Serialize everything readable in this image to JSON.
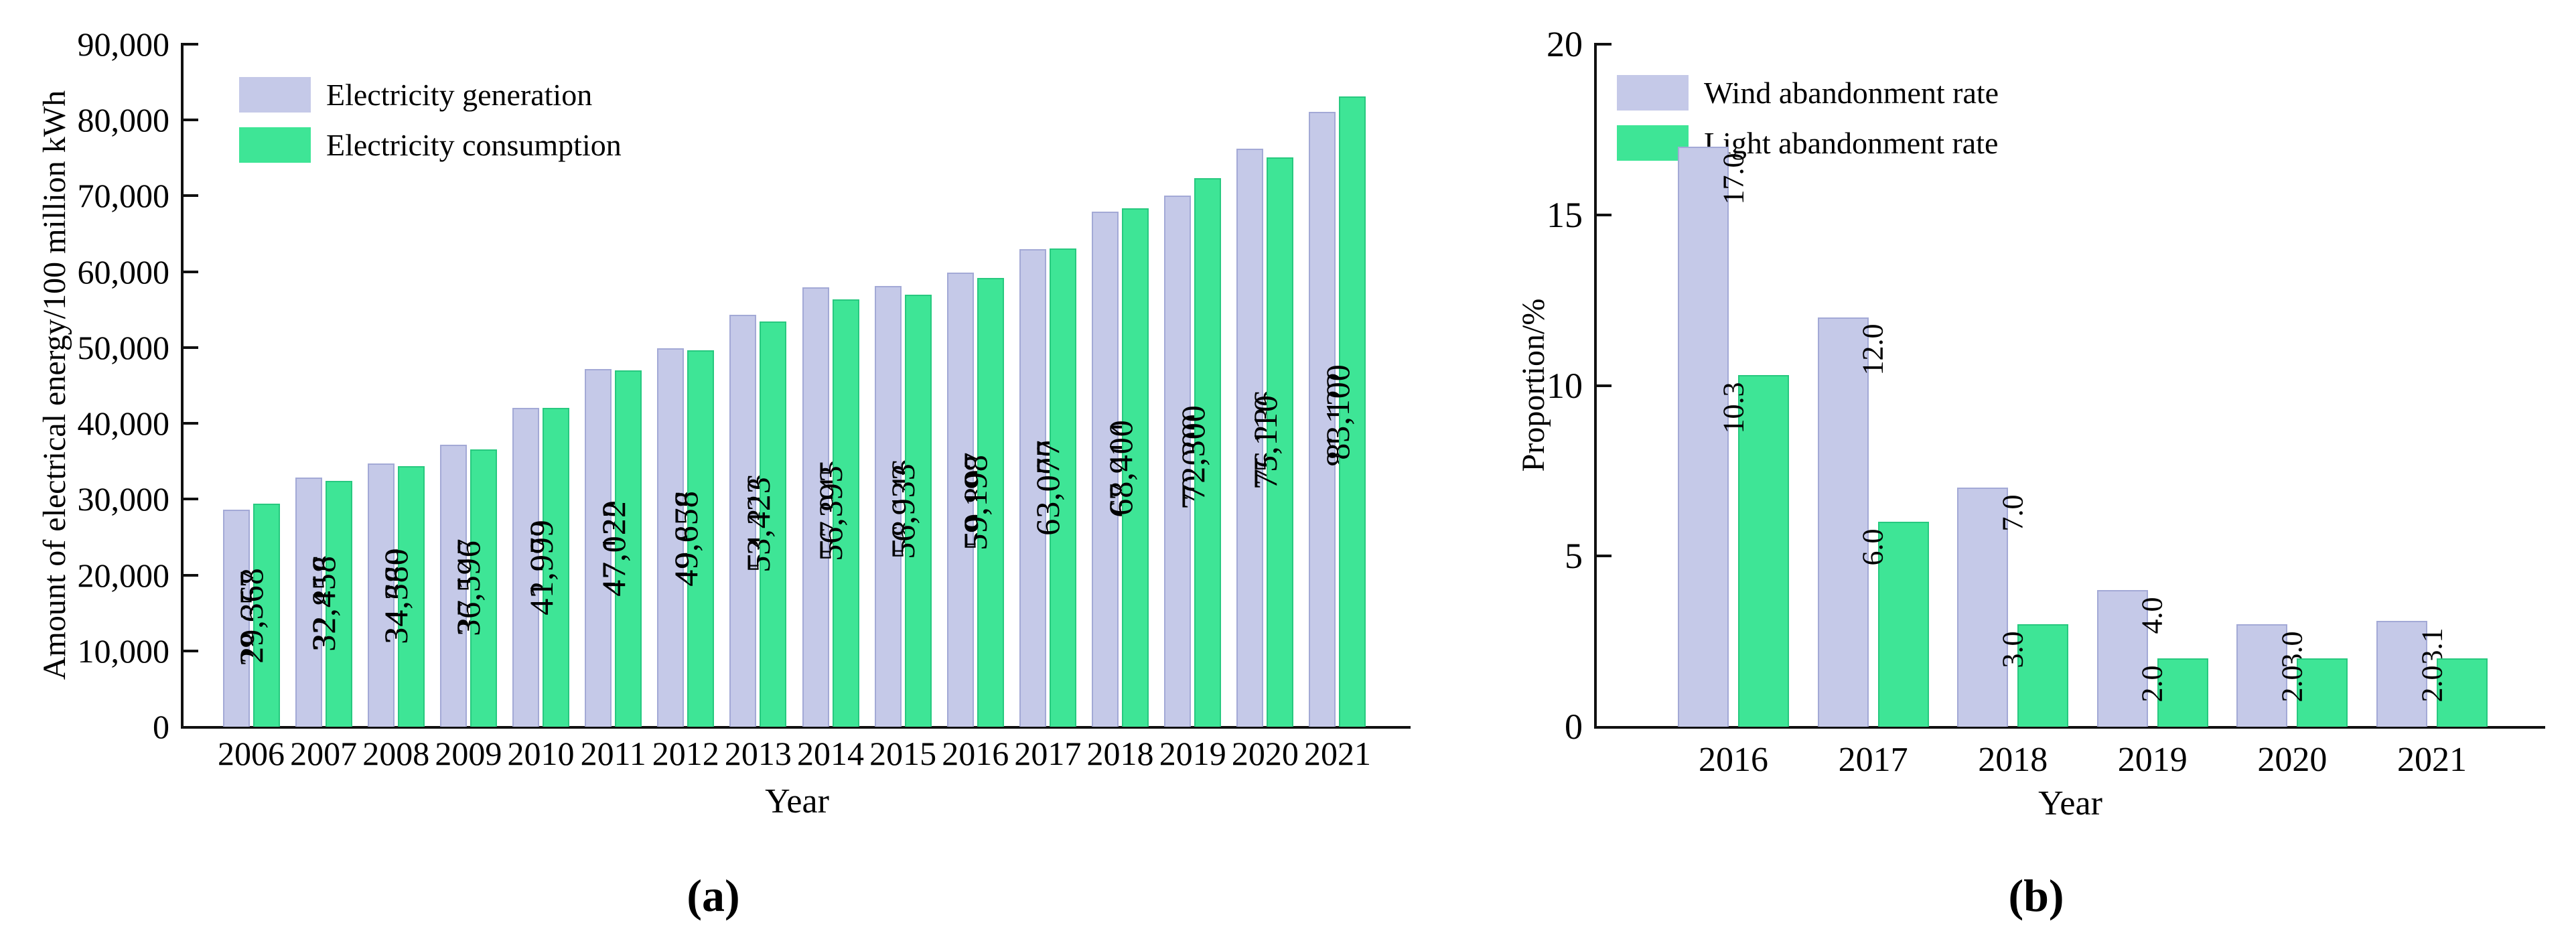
{
  "colors": {
    "generation_fill": "#c5c9e8",
    "generation_edge": "#a3a9d6",
    "consumption_fill": "#3ee596",
    "consumption_edge": "#27c97f",
    "axis": "#111111",
    "text": "#000000"
  },
  "chart_data": [
    {
      "type": "bar",
      "caption": "(a)",
      "xlabel": "Year",
      "ylabel": "Amount of electrical energy/100 million kWh",
      "ylim": [
        0,
        90000
      ],
      "grid": false,
      "legend_position": "upper-left",
      "yticks": [
        0,
        10000,
        20000,
        30000,
        40000,
        50000,
        60000,
        70000,
        80000,
        90000
      ],
      "ytick_labels": [
        "0",
        "10,000",
        "20,000",
        "30,000",
        "40,000",
        "50,000",
        "60,000",
        "70,000",
        "80,000",
        "90,000"
      ],
      "categories": [
        "2006",
        "2007",
        "2008",
        "2009",
        "2010",
        "2011",
        "2012",
        "2013",
        "2014",
        "2015",
        "2016",
        "2017",
        "2018",
        "2019",
        "2020",
        "2021"
      ],
      "series": [
        {
          "name": "Electricity generation",
          "color_key": "generation",
          "values": [
            28657,
            32816,
            34669,
            37147,
            42072,
            47130,
            49876,
            54316,
            57945,
            58146,
            59897,
            63000,
            67914,
            70000,
            76236,
            81122
          ],
          "labels": [
            "28,657",
            "32,816",
            "34,669",
            "37,147",
            "42,072",
            "47,130",
            "49,876",
            "54,316",
            "57,945",
            "58,146",
            "59,897",
            "63,000",
            "67,914",
            "70,000",
            "76,236",
            "81,122"
          ]
        },
        {
          "name": "Electricity consumption",
          "color_key": "consumption",
          "values": [
            29368,
            32458,
            34380,
            36596,
            41999,
            47022,
            49658,
            53423,
            56393,
            56933,
            59198,
            63077,
            68400,
            72300,
            75110,
            83100
          ],
          "labels": [
            "29,368",
            "32,458",
            "34,380",
            "36,596",
            "41,999",
            "47,022",
            "49,658",
            "53,423",
            "56,393",
            "56,933",
            "59,198",
            "63,077",
            "68,400",
            "72,300",
            "75,110",
            "83,100"
          ]
        }
      ]
    },
    {
      "type": "bar",
      "caption": "(b)",
      "xlabel": "Year",
      "ylabel": "Proportion/%",
      "ylim": [
        0,
        20
      ],
      "grid": false,
      "legend_position": "upper-left",
      "yticks": [
        0,
        5,
        10,
        15,
        20
      ],
      "ytick_labels": [
        "0",
        "5",
        "10",
        "15",
        "20"
      ],
      "categories": [
        "2016",
        "2017",
        "2018",
        "2019",
        "2020",
        "2021"
      ],
      "series": [
        {
          "name": "Wind abandonment rate",
          "color_key": "generation",
          "values": [
            17.0,
            12.0,
            7.0,
            4.0,
            3.0,
            3.1
          ],
          "labels": [
            "17.0",
            "12.0",
            "7.0",
            "4.0",
            "3.0",
            "3.1"
          ]
        },
        {
          "name": "Light abandonment rate",
          "color_key": "consumption",
          "values": [
            10.3,
            6.0,
            3.0,
            2.0,
            2.0,
            2.0
          ],
          "labels": [
            "10.3",
            "6.0",
            "3.0",
            "2.0",
            "2.0",
            "2.0"
          ]
        }
      ]
    }
  ]
}
